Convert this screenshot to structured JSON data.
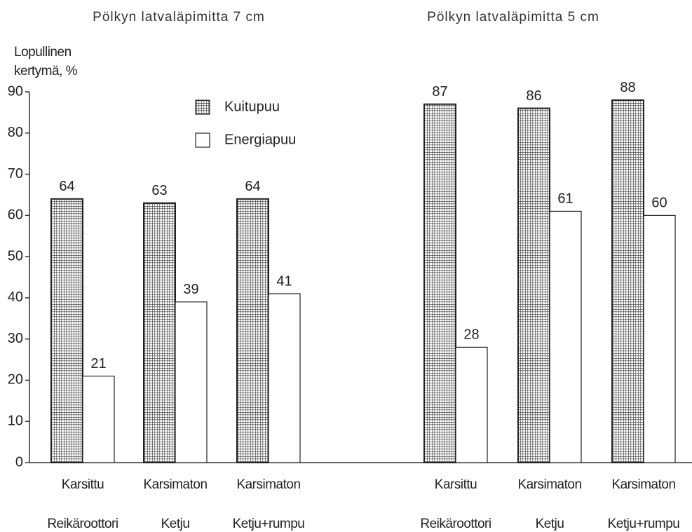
{
  "chart_data": [
    {
      "type": "bar",
      "title": "Pölkyn latvaläpimitta 7 cm",
      "ylabel": [
        "Lopullinen",
        "kertymä, %"
      ],
      "categories": [
        [
          "Karsittu",
          "Reikäroottori"
        ],
        [
          "Karsimaton",
          "Ketju"
        ],
        [
          "Karsimaton",
          "Ketju+rumpu"
        ]
      ],
      "series": [
        {
          "name": "Kuitupuu",
          "color": "#333333",
          "pattern": "grid",
          "values": [
            64,
            63,
            64
          ]
        },
        {
          "name": "Energiapuu",
          "color": "#ffffff",
          "values": [
            21,
            39,
            41
          ]
        }
      ],
      "ylim": [
        0,
        90
      ],
      "yticks": [
        0,
        10,
        20,
        30,
        40,
        50,
        60,
        70,
        80,
        90
      ]
    },
    {
      "type": "bar",
      "title": "Pölkyn latvaläpimitta 5 cm",
      "categories": [
        [
          "Karsittu",
          "Reikäroottori"
        ],
        [
          "Karsimaton",
          "Ketju"
        ],
        [
          "Karsimaton",
          "Ketju+rumpu"
        ]
      ],
      "series": [
        {
          "color": "#333333",
          "pattern": "grid",
          "values": [
            87,
            86,
            88
          ]
        },
        {
          "color": "#ffffff",
          "values": [
            28,
            61,
            60
          ]
        }
      ],
      "ylim": [
        0,
        90
      ]
    }
  ]
}
